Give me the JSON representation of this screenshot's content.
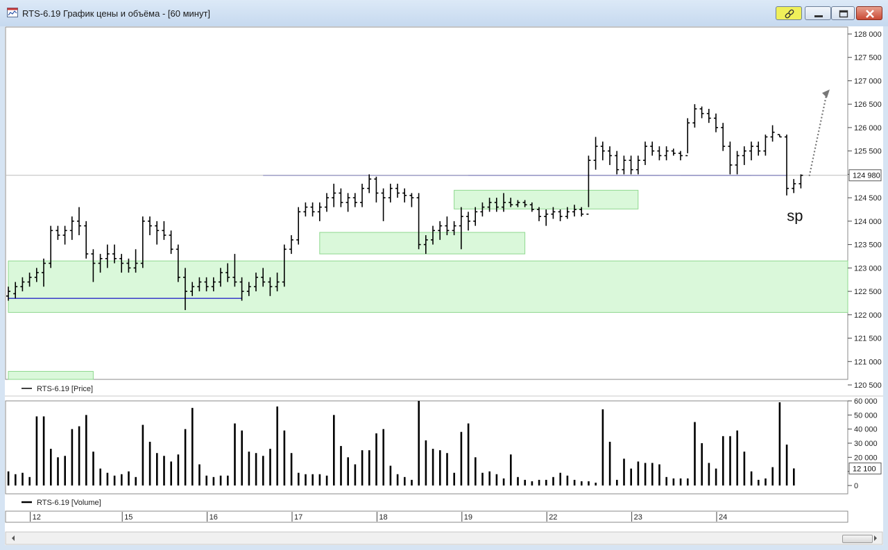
{
  "window": {
    "title": "RTS-6.19 График цены и объёма - [60 минут]",
    "buttons": [
      "link",
      "minimize",
      "maximize",
      "close"
    ]
  },
  "colors": {
    "price_bars": "#000000",
    "levels": "#2929c8",
    "zones_fill": "#d4f7d4",
    "zones_border": "#8ed88e",
    "current_price_line": "#bbbbbb",
    "arrow": "#777777"
  },
  "price_legend": "RTS-6.19 [Price]",
  "volume_legend": "RTS-6.19 [Volume]",
  "annotation": "sp",
  "current_price_label": "124 980",
  "current_volume_label": "12 100",
  "price_axis": {
    "range": [
      120500,
      128000
    ],
    "ticks": [
      128000,
      127500,
      127000,
      126500,
      126000,
      125500,
      125000,
      124500,
      124000,
      123500,
      123000,
      122500,
      122000,
      121500,
      121000,
      120500
    ],
    "tick_labels": [
      "128 000",
      "127 500",
      "127 000",
      "126 500",
      "126 000",
      "125 500",
      "125 000",
      "124 500",
      "124 000",
      "123 500",
      "123 000",
      "122 500",
      "122 000",
      "121 500",
      "121 000",
      "120 500"
    ]
  },
  "volume_axis": {
    "range": [
      0,
      60000
    ],
    "ticks": [
      60000,
      50000,
      40000,
      30000,
      20000,
      10000,
      0
    ],
    "tick_labels": [
      "60 000",
      "50 000",
      "40 000",
      "30 000",
      "20 000",
      "10 000",
      "0"
    ]
  },
  "time_axis": {
    "labels": [
      "12",
      "15",
      "16",
      "17",
      "18",
      "19",
      "22",
      "23",
      "24"
    ],
    "bar_index": [
      3,
      16,
      28,
      40,
      52,
      64,
      76,
      88,
      100
    ]
  },
  "chart_data": [
    {
      "type": "ohlc",
      "title": "RTS-6.19 [Price]",
      "x_unit": "hourly bars (60 min), days 12–24",
      "ylim": [
        120500,
        128000
      ],
      "x_label_days": [
        "12",
        "15",
        "16",
        "17",
        "18",
        "19",
        "22",
        "23",
        "24"
      ],
      "bars": [
        [
          122400,
          122600,
          122300,
          122500
        ],
        [
          122450,
          122700,
          122350,
          122600
        ],
        [
          122600,
          122800,
          122500,
          122700
        ],
        [
          122700,
          122900,
          122600,
          122800
        ],
        [
          122800,
          123000,
          122700,
          122900
        ],
        [
          122900,
          123200,
          122600,
          123100
        ],
        [
          123100,
          123900,
          123000,
          123800
        ],
        [
          123800,
          123900,
          123600,
          123700
        ],
        [
          123700,
          123900,
          123500,
          123800
        ],
        [
          123800,
          124100,
          123600,
          124000
        ],
        [
          124000,
          124300,
          123700,
          123900
        ],
        [
          123900,
          124000,
          123200,
          123300
        ],
        [
          123300,
          123400,
          122700,
          123100
        ],
        [
          123100,
          123300,
          122900,
          123200
        ],
        [
          123200,
          123500,
          123000,
          123300
        ],
        [
          123300,
          123500,
          123100,
          123200
        ],
        [
          123200,
          123300,
          122900,
          123100
        ],
        [
          123100,
          123200,
          122900,
          123000
        ],
        [
          123000,
          123400,
          122900,
          123100
        ],
        [
          123100,
          124100,
          123000,
          124000
        ],
        [
          124000,
          124100,
          123700,
          123900
        ],
        [
          123900,
          124000,
          123500,
          123800
        ],
        [
          123800,
          124000,
          123600,
          123700
        ],
        [
          123700,
          123800,
          123300,
          123400
        ],
        [
          123400,
          123500,
          122700,
          122800
        ],
        [
          122800,
          123000,
          122100,
          122500
        ],
        [
          122500,
          122700,
          122400,
          122600
        ],
        [
          122600,
          122800,
          122500,
          122700
        ],
        [
          122700,
          122800,
          122500,
          122600
        ],
        [
          122600,
          122800,
          122500,
          122700
        ],
        [
          122700,
          123000,
          122600,
          122900
        ],
        [
          122900,
          123100,
          122700,
          122800
        ],
        [
          122800,
          123300,
          122600,
          122700
        ],
        [
          122700,
          122800,
          122300,
          122500
        ],
        [
          122500,
          122700,
          122400,
          122600
        ],
        [
          122600,
          122900,
          122500,
          122800
        ],
        [
          122800,
          123000,
          122600,
          122700
        ],
        [
          122700,
          122800,
          122400,
          122600
        ],
        [
          122600,
          122900,
          122500,
          122700
        ],
        [
          122700,
          123500,
          122600,
          123400
        ],
        [
          123400,
          123700,
          123300,
          123600
        ],
        [
          123600,
          124300,
          123500,
          124200
        ],
        [
          124200,
          124400,
          124100,
          124300
        ],
        [
          124300,
          124400,
          124100,
          124200
        ],
        [
          124200,
          124400,
          124000,
          124300
        ],
        [
          124300,
          124600,
          124200,
          124500
        ],
        [
          124500,
          124800,
          124300,
          124600
        ],
        [
          124600,
          124700,
          124300,
          124400
        ],
        [
          124400,
          124600,
          124200,
          124500
        ],
        [
          124500,
          124600,
          124300,
          124400
        ],
        [
          124400,
          124800,
          124300,
          124700
        ],
        [
          124700,
          125000,
          124600,
          124900
        ],
        [
          124900,
          124950,
          124400,
          124600
        ],
        [
          124600,
          124700,
          124000,
          124500
        ],
        [
          124500,
          124800,
          124400,
          124700
        ],
        [
          124700,
          124800,
          124500,
          124600
        ],
        [
          124600,
          124700,
          124400,
          124550
        ],
        [
          124550,
          124600,
          124300,
          124500
        ],
        [
          124500,
          124600,
          123400,
          123500
        ],
        [
          123500,
          123700,
          123300,
          123600
        ],
        [
          123600,
          123900,
          123500,
          123800
        ],
        [
          123800,
          124000,
          123600,
          123900
        ],
        [
          123900,
          124100,
          123700,
          123800
        ],
        [
          123800,
          124000,
          123700,
          123900
        ],
        [
          123900,
          124300,
          123400,
          124100
        ],
        [
          124100,
          124200,
          123800,
          124000
        ],
        [
          124000,
          124300,
          123900,
          124200
        ],
        [
          124200,
          124400,
          124100,
          124300
        ],
        [
          124300,
          124500,
          124200,
          124400
        ],
        [
          124400,
          124500,
          124200,
          124300
        ],
        [
          124300,
          124600,
          124200,
          124400
        ],
        [
          124400,
          124500,
          124300,
          124350
        ],
        [
          124350,
          124450,
          124300,
          124400
        ],
        [
          124400,
          124450,
          124300,
          124350
        ],
        [
          124350,
          124400,
          124200,
          124250
        ],
        [
          124250,
          124300,
          124000,
          124100
        ],
        [
          124100,
          124250,
          123900,
          124150
        ],
        [
          124150,
          124300,
          124050,
          124200
        ],
        [
          124200,
          124250,
          124000,
          124100
        ],
        [
          124100,
          124300,
          124050,
          124200
        ],
        [
          124200,
          124350,
          124100,
          124250
        ],
        [
          124250,
          124300,
          124100,
          124150
        ],
        [
          124150,
          125400,
          124300,
          125300
        ],
        [
          125300,
          125800,
          125100,
          125600
        ],
        [
          125600,
          125700,
          125300,
          125500
        ],
        [
          125500,
          125600,
          125200,
          125400
        ],
        [
          125400,
          125500,
          125000,
          125100
        ],
        [
          125100,
          125400,
          125000,
          125300
        ],
        [
          125300,
          125400,
          125000,
          125100
        ],
        [
          125100,
          125400,
          125000,
          125300
        ],
        [
          125300,
          125700,
          125200,
          125600
        ],
        [
          125600,
          125700,
          125400,
          125500
        ],
        [
          125500,
          125600,
          125300,
          125400
        ],
        [
          125400,
          125600,
          125300,
          125500
        ],
        [
          125500,
          125550,
          125400,
          125450
        ],
        [
          125450,
          125500,
          125300,
          125400
        ],
        [
          125400,
          126200,
          125450,
          126100
        ],
        [
          126100,
          126500,
          126000,
          126400
        ],
        [
          126400,
          126450,
          126200,
          126300
        ],
        [
          126300,
          126400,
          126100,
          126200
        ],
        [
          126200,
          126300,
          125900,
          126000
        ],
        [
          126000,
          126100,
          125500,
          125600
        ],
        [
          125600,
          125700,
          125000,
          125200
        ],
        [
          125200,
          125500,
          125000,
          125400
        ],
        [
          125400,
          125600,
          125200,
          125500
        ],
        [
          125500,
          125700,
          125300,
          125600
        ],
        [
          125600,
          125700,
          125400,
          125500
        ],
        [
          125500,
          125850,
          125400,
          125800
        ],
        [
          125800,
          126050,
          125700,
          125900
        ],
        [
          125850,
          125850,
          125800,
          125800
        ],
        [
          125800,
          125850,
          124550,
          124700
        ],
        [
          124700,
          124900,
          124600,
          124800
        ],
        [
          124800,
          125000,
          124700,
          124980
        ]
      ]
    },
    {
      "type": "bar",
      "title": "RTS-6.19 [Volume]",
      "ylim": [
        0,
        60000
      ],
      "values": [
        10000,
        8000,
        9000,
        6000,
        49000,
        49000,
        26000,
        20000,
        21000,
        40000,
        42000,
        50000,
        24000,
        12000,
        9000,
        7000,
        8000,
        10000,
        6000,
        43000,
        31000,
        23000,
        21000,
        17000,
        22000,
        40000,
        55000,
        15000,
        7000,
        6000,
        7000,
        7000,
        44000,
        39000,
        24000,
        23000,
        21000,
        26000,
        56000,
        39000,
        23000,
        9000,
        8000,
        8000,
        8000,
        7000,
        50000,
        28000,
        20000,
        15000,
        25000,
        25000,
        37000,
        40000,
        14000,
        8000,
        6000,
        4000,
        60000,
        32000,
        26000,
        25000,
        23000,
        9000,
        38000,
        44000,
        20000,
        9000,
        10000,
        8000,
        5000,
        22000,
        6000,
        4000,
        3000,
        4000,
        4000,
        6000,
        9000,
        7000,
        4000,
        3000,
        3000,
        2000,
        54000,
        31000,
        4000,
        19000,
        12000,
        17000,
        16000,
        16000,
        15000,
        6000,
        5000,
        5000,
        5000,
        45000,
        30000,
        16000,
        12000,
        35000,
        35000,
        39000,
        24000,
        10000,
        4000,
        5000,
        13000,
        59000,
        29000,
        12100
      ]
    }
  ],
  "horizontal_levels": [
    {
      "price": 122350,
      "from_bar": 0,
      "to_bar": 33
    },
    {
      "price": 124980,
      "from_bar": 36,
      "to_bar": 92
    },
    {
      "price": 124980,
      "from_bar": 87,
      "to_bar": 110
    },
    {
      "price": 124980,
      "from_bar": 65,
      "to_bar": 105
    },
    {
      "price": 124980,
      "from_bar": 95,
      "to_bar": 110
    }
  ],
  "zones": [
    {
      "from_bar": 0,
      "to_bar": 130,
      "price_low": 122050,
      "price_high": 123150
    },
    {
      "from_bar": 0,
      "to_bar": 12,
      "price_low": 120500,
      "price_high": 120790
    },
    {
      "from_bar": 44,
      "to_bar": 73,
      "price_low": 123300,
      "price_high": 123760
    },
    {
      "from_bar": 63,
      "to_bar": 89,
      "price_low": 124260,
      "price_high": 124660
    }
  ]
}
